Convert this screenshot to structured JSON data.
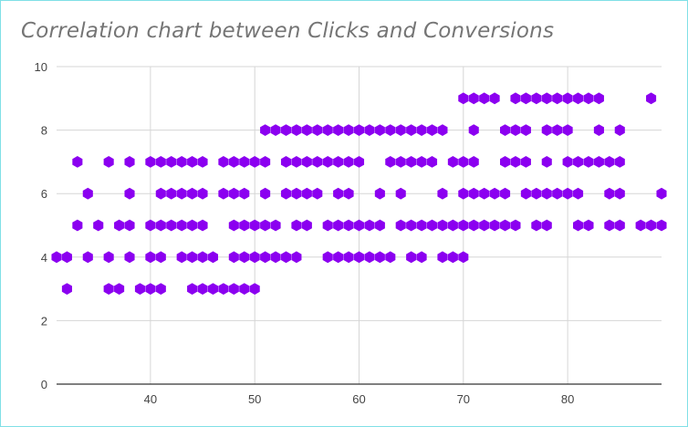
{
  "chart_data": {
    "type": "scatter",
    "title": "Correlation chart between Clicks and Conversions",
    "xlabel": "",
    "ylabel": "",
    "xlim": [
      31,
      89
    ],
    "ylim": [
      0,
      10
    ],
    "x_ticks": [
      "40",
      "50",
      "60",
      "70",
      "80"
    ],
    "y_ticks": [
      "0",
      "2",
      "4",
      "6",
      "8",
      "10"
    ],
    "grid": true,
    "marker_color": "#8b00f0",
    "marker": "hexagon",
    "points": [
      [
        31,
        4
      ],
      [
        32,
        4
      ],
      [
        32,
        3
      ],
      [
        33,
        5
      ],
      [
        33,
        7
      ],
      [
        34,
        6
      ],
      [
        34,
        4
      ],
      [
        35,
        5
      ],
      [
        36,
        7
      ],
      [
        36,
        4
      ],
      [
        36,
        3
      ],
      [
        37,
        5
      ],
      [
        37,
        3
      ],
      [
        38,
        7
      ],
      [
        38,
        6
      ],
      [
        38,
        5
      ],
      [
        38,
        4
      ],
      [
        39,
        3
      ],
      [
        40,
        7
      ],
      [
        40,
        5
      ],
      [
        40,
        4
      ],
      [
        40,
        3
      ],
      [
        41,
        7
      ],
      [
        41,
        6
      ],
      [
        41,
        5
      ],
      [
        41,
        4
      ],
      [
        41,
        3
      ],
      [
        42,
        7
      ],
      [
        42,
        6
      ],
      [
        42,
        5
      ],
      [
        43,
        7
      ],
      [
        43,
        6
      ],
      [
        43,
        5
      ],
      [
        43,
        4
      ],
      [
        44,
        7
      ],
      [
        44,
        6
      ],
      [
        44,
        5
      ],
      [
        44,
        4
      ],
      [
        44,
        3
      ],
      [
        45,
        7
      ],
      [
        45,
        6
      ],
      [
        45,
        5
      ],
      [
        45,
        4
      ],
      [
        45,
        3
      ],
      [
        46,
        4
      ],
      [
        46,
        3
      ],
      [
        47,
        7
      ],
      [
        47,
        6
      ],
      [
        47,
        3
      ],
      [
        48,
        7
      ],
      [
        48,
        6
      ],
      [
        48,
        5
      ],
      [
        48,
        4
      ],
      [
        48,
        3
      ],
      [
        49,
        7
      ],
      [
        49,
        6
      ],
      [
        49,
        5
      ],
      [
        49,
        4
      ],
      [
        49,
        3
      ],
      [
        50,
        7
      ],
      [
        50,
        5
      ],
      [
        50,
        4
      ],
      [
        50,
        3
      ],
      [
        51,
        8
      ],
      [
        51,
        7
      ],
      [
        51,
        6
      ],
      [
        51,
        5
      ],
      [
        51,
        4
      ],
      [
        52,
        8
      ],
      [
        52,
        5
      ],
      [
        52,
        4
      ],
      [
        53,
        8
      ],
      [
        53,
        7
      ],
      [
        53,
        6
      ],
      [
        53,
        4
      ],
      [
        54,
        8
      ],
      [
        54,
        7
      ],
      [
        54,
        6
      ],
      [
        54,
        5
      ],
      [
        54,
        4
      ],
      [
        55,
        8
      ],
      [
        55,
        7
      ],
      [
        55,
        6
      ],
      [
        55,
        5
      ],
      [
        56,
        8
      ],
      [
        56,
        7
      ],
      [
        56,
        6
      ],
      [
        57,
        8
      ],
      [
        57,
        7
      ],
      [
        57,
        5
      ],
      [
        57,
        4
      ],
      [
        58,
        8
      ],
      [
        58,
        7
      ],
      [
        58,
        6
      ],
      [
        58,
        5
      ],
      [
        58,
        4
      ],
      [
        59,
        8
      ],
      [
        59,
        7
      ],
      [
        59,
        6
      ],
      [
        59,
        5
      ],
      [
        59,
        4
      ],
      [
        60,
        8
      ],
      [
        60,
        7
      ],
      [
        60,
        5
      ],
      [
        60,
        4
      ],
      [
        61,
        8
      ],
      [
        61,
        5
      ],
      [
        61,
        4
      ],
      [
        62,
        8
      ],
      [
        62,
        6
      ],
      [
        62,
        5
      ],
      [
        62,
        4
      ],
      [
        63,
        8
      ],
      [
        63,
        7
      ],
      [
        63,
        4
      ],
      [
        64,
        8
      ],
      [
        64,
        7
      ],
      [
        64,
        6
      ],
      [
        64,
        5
      ],
      [
        65,
        8
      ],
      [
        65,
        7
      ],
      [
        65,
        5
      ],
      [
        65,
        4
      ],
      [
        66,
        8
      ],
      [
        66,
        7
      ],
      [
        66,
        5
      ],
      [
        66,
        4
      ],
      [
        67,
        8
      ],
      [
        67,
        7
      ],
      [
        67,
        5
      ],
      [
        68,
        8
      ],
      [
        68,
        6
      ],
      [
        68,
        5
      ],
      [
        68,
        4
      ],
      [
        69,
        7
      ],
      [
        69,
        5
      ],
      [
        69,
        4
      ],
      [
        70,
        9
      ],
      [
        70,
        7
      ],
      [
        70,
        6
      ],
      [
        70,
        5
      ],
      [
        70,
        4
      ],
      [
        71,
        9
      ],
      [
        71,
        8
      ],
      [
        71,
        7
      ],
      [
        71,
        6
      ],
      [
        71,
        5
      ],
      [
        72,
        9
      ],
      [
        72,
        6
      ],
      [
        72,
        5
      ],
      [
        73,
        9
      ],
      [
        73,
        6
      ],
      [
        73,
        5
      ],
      [
        74,
        8
      ],
      [
        74,
        7
      ],
      [
        74,
        6
      ],
      [
        74,
        5
      ],
      [
        75,
        9
      ],
      [
        75,
        8
      ],
      [
        75,
        7
      ],
      [
        75,
        5
      ],
      [
        76,
        9
      ],
      [
        76,
        8
      ],
      [
        76,
        7
      ],
      [
        76,
        6
      ],
      [
        77,
        9
      ],
      [
        77,
        6
      ],
      [
        77,
        5
      ],
      [
        78,
        9
      ],
      [
        78,
        8
      ],
      [
        78,
        7
      ],
      [
        78,
        6
      ],
      [
        78,
        5
      ],
      [
        79,
        9
      ],
      [
        79,
        8
      ],
      [
        79,
        6
      ],
      [
        80,
        9
      ],
      [
        80,
        8
      ],
      [
        80,
        7
      ],
      [
        80,
        6
      ],
      [
        81,
        9
      ],
      [
        81,
        7
      ],
      [
        81,
        6
      ],
      [
        81,
        5
      ],
      [
        82,
        9
      ],
      [
        82,
        7
      ],
      [
        82,
        5
      ],
      [
        83,
        9
      ],
      [
        83,
        8
      ],
      [
        83,
        7
      ],
      [
        84,
        7
      ],
      [
        84,
        6
      ],
      [
        84,
        5
      ],
      [
        85,
        8
      ],
      [
        85,
        7
      ],
      [
        85,
        6
      ],
      [
        85,
        5
      ],
      [
        87,
        5
      ],
      [
        88,
        9
      ],
      [
        88,
        5
      ],
      [
        89,
        6
      ],
      [
        89,
        5
      ]
    ]
  }
}
